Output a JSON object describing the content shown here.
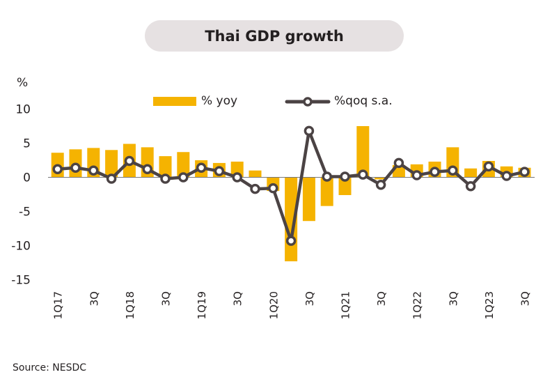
{
  "chart_data": {
    "type": "bar",
    "title": "Thai GDP growth",
    "ylabel": "%",
    "xlabel": "",
    "ylim": [
      -15,
      10
    ],
    "yticks": [
      10,
      5,
      0,
      -5,
      -10,
      -15
    ],
    "grid": false,
    "legend_position": "top",
    "categories": [
      "1Q17",
      "2Q17",
      "3Q17",
      "4Q17",
      "1Q18",
      "2Q18",
      "3Q18",
      "4Q18",
      "1Q19",
      "2Q19",
      "3Q19",
      "4Q19",
      "1Q20",
      "2Q20",
      "3Q20",
      "4Q20",
      "1Q21",
      "2Q21",
      "3Q21",
      "4Q21",
      "1Q22",
      "2Q22",
      "3Q22",
      "4Q22",
      "1Q23",
      "2Q23",
      "3Q23"
    ],
    "tick_labels": [
      "1Q17",
      "",
      "3Q",
      "",
      "1Q18",
      "",
      "3Q",
      "",
      "1Q19",
      "",
      "3Q",
      "",
      "1Q20",
      "",
      "3Q",
      "",
      "1Q21",
      "",
      "3Q",
      "",
      "1Q22",
      "",
      "3Q",
      "",
      "1Q23",
      "",
      "3Q"
    ],
    "series": [
      {
        "name": "% yoy",
        "type": "bar",
        "color": "#f5b301",
        "values": [
          3.6,
          4.1,
          4.3,
          4.0,
          4.9,
          4.4,
          3.1,
          3.7,
          2.5,
          2.1,
          2.3,
          1.0,
          -2.0,
          -12.3,
          -6.4,
          -4.2,
          -2.6,
          7.5,
          -0.3,
          1.8,
          1.9,
          2.3,
          4.4,
          1.3,
          2.4,
          1.6,
          1.4
        ]
      },
      {
        "name": "%qoq s.a.",
        "type": "line",
        "color": "#4b4344",
        "values": [
          1.2,
          1.4,
          1.0,
          -0.2,
          2.4,
          1.2,
          -0.2,
          0.0,
          1.4,
          0.9,
          0.0,
          -1.7,
          -1.6,
          -9.3,
          6.8,
          0.1,
          0.1,
          0.4,
          -1.1,
          2.1,
          0.3,
          0.8,
          1.0,
          -1.3,
          1.6,
          0.2,
          0.8
        ]
      }
    ]
  },
  "source": "Source: NESDC"
}
